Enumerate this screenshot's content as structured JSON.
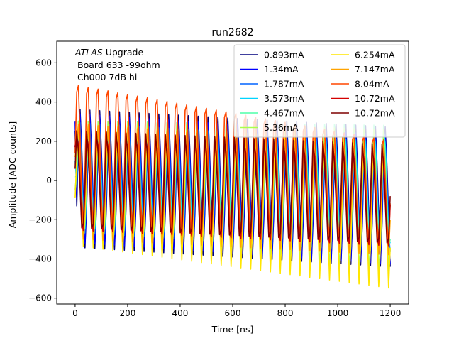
{
  "chart_data": {
    "type": "line",
    "title": "run2682",
    "xlabel": "Time [ns]",
    "ylabel": "Amplitude [ADC counts]",
    "xlim": [
      -70,
      1270
    ],
    "ylim": [
      -630,
      710
    ],
    "xticks": [
      0,
      200,
      400,
      600,
      800,
      1000,
      1200
    ],
    "yticks": [
      -600,
      -400,
      -200,
      0,
      200,
      400,
      600
    ],
    "grid": false,
    "legend_position": "top-right",
    "legend_columns": 2,
    "annotation": {
      "line1_italic": "ATLAS",
      "line1_rest": " Upgrade",
      "line2": "Board 633 -99ohm",
      "line3": "Ch000 7dB hi"
    },
    "sampling": {
      "x_start": 0,
      "x_end": 1200,
      "x_step": 6.25,
      "period_ns": 37.5
    },
    "series": [
      {
        "name": "0.893mA",
        "color": "#00007f",
        "y_at_x0": 250,
        "upper_envelope": [
          420,
          330
        ],
        "lower_envelope": [
          -340,
          -440
        ],
        "phase_ns": 0
      },
      {
        "name": "1.34mA",
        "color": "#0000ff",
        "y_at_x0": 300,
        "upper_envelope": [
          430,
          320
        ],
        "lower_envelope": [
          -350,
          -460
        ],
        "phase_ns": 1
      },
      {
        "name": "1.787mA",
        "color": "#0063ff",
        "y_at_x0": 180,
        "upper_envelope": [
          410,
          310
        ],
        "lower_envelope": [
          -330,
          -430
        ],
        "phase_ns": 2
      },
      {
        "name": "3.573mA",
        "color": "#00d4ff",
        "y_at_x0": 100,
        "upper_envelope": [
          330,
          330
        ],
        "lower_envelope": [
          -330,
          -420
        ],
        "phase_ns": 3
      },
      {
        "name": "4.467mA",
        "color": "#4effa9",
        "y_at_x0": 20,
        "upper_envelope": [
          320,
          300
        ],
        "lower_envelope": [
          -340,
          -430
        ],
        "phase_ns": 4
      },
      {
        "name": "5.36mA",
        "color": "#a9ff4e",
        "y_at_x0": -50,
        "upper_envelope": [
          320,
          280
        ],
        "lower_envelope": [
          -350,
          -520
        ],
        "phase_ns": 5
      },
      {
        "name": "6.254mA",
        "color": "#ffe600",
        "y_at_x0": -90,
        "upper_envelope": [
          330,
          250
        ],
        "lower_envelope": [
          -340,
          -560
        ],
        "phase_ns": 6
      },
      {
        "name": "7.147mA",
        "color": "#ffa300",
        "y_at_x0": 120,
        "upper_envelope": [
          360,
          230
        ],
        "lower_envelope": [
          -320,
          -400
        ],
        "phase_ns": 7
      },
      {
        "name": "8.04mA",
        "color": "#ff4700",
        "y_at_x0": 140,
        "upper_envelope": [
          620,
          300
        ],
        "lower_envelope": [
          -300,
          -380
        ],
        "phase_ns": 8
      },
      {
        "name": "10.72mA",
        "color": "#d40000",
        "y_at_x0": 170,
        "upper_envelope": [
          300,
          220
        ],
        "lower_envelope": [
          -330,
          -410
        ],
        "phase_ns": 9
      },
      {
        "name": "10.72mA",
        "color": "#7f0000",
        "y_at_x0": 60,
        "upper_envelope": [
          280,
          210
        ],
        "lower_envelope": [
          -320,
          -400
        ],
        "phase_ns": 10
      }
    ]
  }
}
